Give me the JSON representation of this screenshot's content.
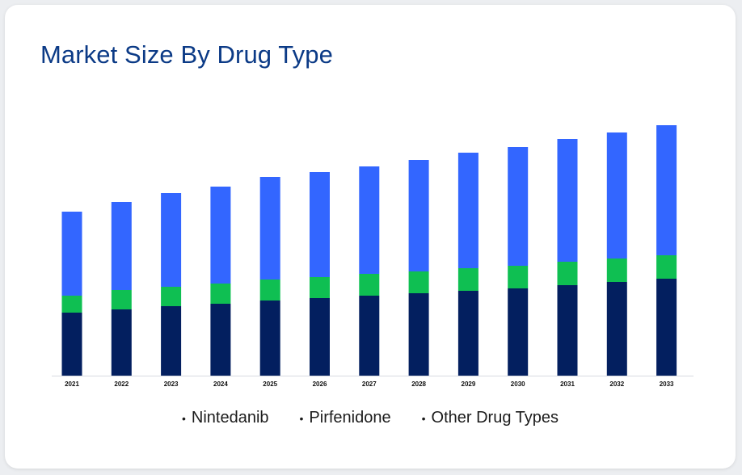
{
  "chart_data": {
    "type": "bar",
    "stacked": true,
    "title": "Market Size By Drug Type",
    "categories": [
      "2021",
      "2022",
      "2023",
      "2024",
      "2025",
      "2026",
      "2027",
      "2028",
      "2029",
      "2030",
      "2031",
      "2032",
      "2033"
    ],
    "series": [
      {
        "name": "Nintedanib",
        "color": "#031f5f",
        "values": [
          78,
          82,
          86,
          89,
          93,
          96,
          99,
          102,
          105,
          108,
          112,
          116,
          120
        ]
      },
      {
        "name": "Pirfenidone",
        "color": "#0fbf52",
        "values": [
          21,
          24,
          24,
          25,
          26,
          26,
          27,
          27,
          28,
          28,
          29,
          29,
          29
        ]
      },
      {
        "name": "Other Drug Types",
        "color": "#3366ff",
        "values": [
          104,
          109,
          116,
          120,
          127,
          130,
          133,
          138,
          143,
          147,
          152,
          156,
          161
        ]
      }
    ],
    "ylim": [
      0,
      310
    ],
    "grid": false,
    "legend_position": "bottom"
  }
}
